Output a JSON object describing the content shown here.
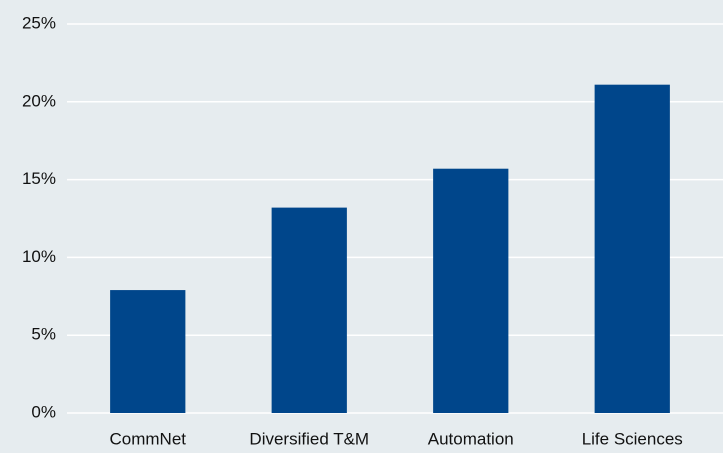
{
  "chart_data": {
    "type": "bar",
    "categories": [
      "CommNet",
      "Diversified T&M",
      "Automation",
      "Life Sciences"
    ],
    "values": [
      7.9,
      13.2,
      15.7,
      21.1
    ],
    "color": "#00468b",
    "ylim": [
      0,
      25
    ],
    "yticks": [
      {
        "value": 0,
        "label": "0%"
      },
      {
        "value": 5,
        "label": "5%"
      },
      {
        "value": 10,
        "label": "10%"
      },
      {
        "value": 15,
        "label": "15%"
      },
      {
        "value": 20,
        "label": "20%"
      },
      {
        "value": 25,
        "label": "25%"
      }
    ],
    "grid": true
  }
}
